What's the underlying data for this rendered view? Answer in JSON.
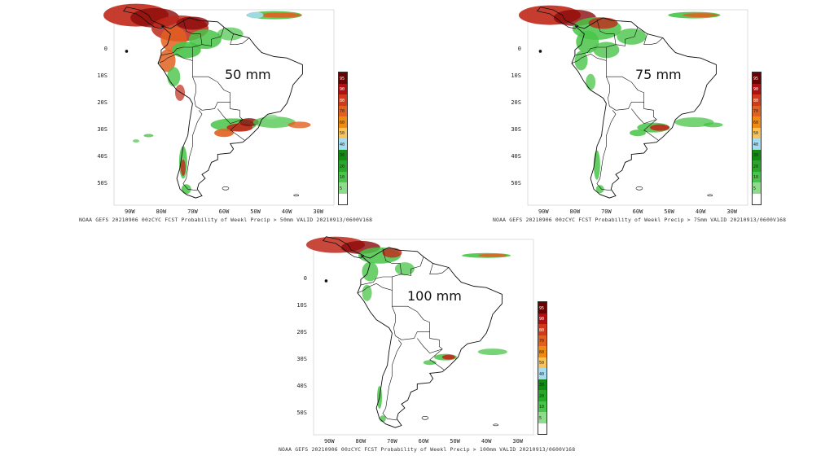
{
  "figure": {
    "panels": [
      {
        "threshold_label": "50 mm",
        "caption": "NOAA GEFS 20210906 00zCYC FCST Probability of Weekl Precip > 50mm  VALID 20210913/0600V168"
      },
      {
        "threshold_label": "75 mm",
        "caption": "NOAA GEFS 20210906 00zCYC FCST Probability of Weekl Precip > 75mm  VALID 20210913/0600V168"
      },
      {
        "threshold_label": "100 mm",
        "caption": "NOAA GEFS 20210906 00zCYC FCST Probability of Weekl Precip > 100mm  VALID 20210913/0600V168"
      }
    ],
    "lat_labels": [
      "0",
      "10S",
      "20S",
      "30S",
      "40S",
      "50S"
    ],
    "lon_labels": [
      "90W",
      "80W",
      "70W",
      "60W",
      "50W",
      "40W",
      "30W"
    ],
    "colorbar": {
      "labels": [
        "95",
        "90",
        "80",
        "70",
        "60",
        "50",
        "40",
        "30",
        "20",
        "10",
        "5"
      ],
      "colors": [
        "#6b0000",
        "#b01010",
        "#d03a1a",
        "#e26020",
        "#f08a10",
        "#f7c35a",
        "#a6dcef",
        "#138a13",
        "#28a828",
        "#48c448",
        "#8cdc8c",
        "#ffffff"
      ]
    }
  }
}
